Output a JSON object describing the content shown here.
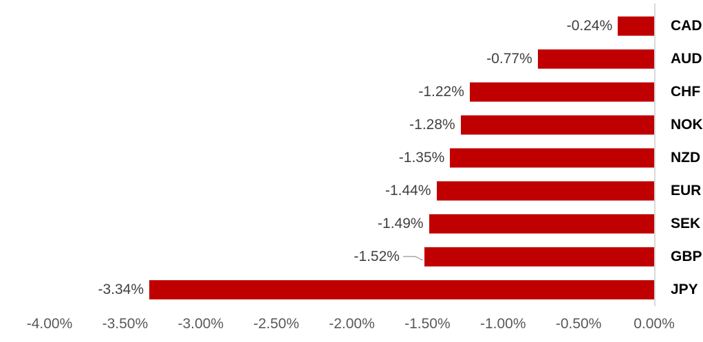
{
  "chart_data": {
    "type": "bar",
    "orientation": "horizontal",
    "legend": "none",
    "gridlines": false,
    "series": [
      {
        "points": [
          {
            "category": "CAD",
            "value": -0.24,
            "label": "-0.24%"
          },
          {
            "category": "AUD",
            "value": -0.77,
            "label": "-0.77%"
          },
          {
            "category": "CHF",
            "value": -1.22,
            "label": "-1.22%"
          },
          {
            "category": "NOK",
            "value": -1.28,
            "label": "-1.28%"
          },
          {
            "category": "NZD",
            "value": -1.35,
            "label": "-1.35%"
          },
          {
            "category": "EUR",
            "value": -1.44,
            "label": "-1.44%"
          },
          {
            "category": "SEK",
            "value": -1.49,
            "label": "-1.49%"
          },
          {
            "category": "GBP",
            "value": -1.52,
            "label": "-1.52%",
            "leader_line": true
          },
          {
            "category": "JPY",
            "value": -3.34,
            "label": "-3.34%"
          }
        ]
      }
    ],
    "x_axis": {
      "ticks": [
        "-4.00%",
        "-3.50%",
        "-3.00%",
        "-2.50%",
        "-2.00%",
        "-1.50%",
        "-1.00%",
        "-0.50%",
        "0.00%"
      ],
      "min": -4,
      "max": 0,
      "format": "percent"
    },
    "colors": {
      "bar": "#C00000",
      "data_label": "#404040",
      "category_label": "#000000",
      "tick_label": "#595959",
      "axis_line": "#D9D9D9",
      "leader_line": "#A6A6A6",
      "background": "#FFFFFF"
    }
  }
}
